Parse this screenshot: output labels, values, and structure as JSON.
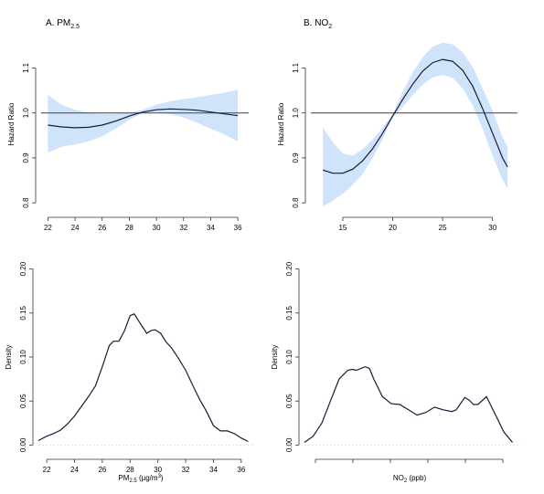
{
  "panels": {
    "a": {
      "title_prefix": "A. PM",
      "title_sub": "2.5"
    },
    "b": {
      "title_prefix": "B. NO",
      "title_sub": "2"
    },
    "c": {
      "xlabel_prefix": "PM",
      "xlabel_sub": "2.5",
      "xlabel_mid": " (µg/m",
      "xlabel_sup": "3",
      "xlabel_end": ")"
    },
    "d": {
      "xlabel": "NO2 (ppb)",
      "xlabel_prefix": "NO",
      "xlabel_sub": "2",
      "xlabel_end": " (ppb)"
    }
  },
  "colors": {
    "line": "#1a1a3a",
    "band": "#cfe3fb",
    "ref": "#555555",
    "axis": "#333333"
  },
  "chart_data": [
    {
      "id": "a",
      "type": "line",
      "title": "A. PM2.5",
      "xlabel": "",
      "ylabel": "Hazard Ratio",
      "xlim": [
        21.5,
        36.8
      ],
      "ylim": [
        0.78,
        1.17
      ],
      "xticks": [
        22,
        24,
        26,
        28,
        30,
        32,
        34,
        36
      ],
      "yticks": [
        0.8,
        0.9,
        1.0,
        1.1
      ],
      "ytick_labels": [
        "0.8",
        "0.9",
        "1.0",
        "1.1"
      ],
      "reference_line": 1.0,
      "x": [
        22,
        23,
        24,
        25,
        26,
        27,
        28,
        29,
        30,
        31,
        32,
        33,
        34,
        35,
        36
      ],
      "series": [
        {
          "values": [
            0.973,
            0.969,
            0.967,
            0.968,
            0.973,
            0.982,
            0.993,
            1.002,
            1.007,
            1.009,
            1.008,
            1.006,
            1.002,
            0.998,
            0.994
          ]
        }
      ],
      "ci_lower": [
        0.912,
        0.925,
        0.93,
        0.937,
        0.948,
        0.965,
        0.985,
        1.0,
        1.002,
        0.998,
        0.99,
        0.978,
        0.965,
        0.952,
        0.937
      ],
      "ci_upper": [
        1.04,
        1.018,
        1.007,
        1.0,
        0.998,
        0.998,
        1.0,
        1.007,
        1.018,
        1.026,
        1.031,
        1.035,
        1.04,
        1.045,
        1.052
      ]
    },
    {
      "id": "b",
      "type": "line",
      "title": "B. NO2",
      "xlabel": "",
      "ylabel": "Hazard Ratio",
      "xlim": [
        11.8,
        32.5
      ],
      "ylim": [
        0.78,
        1.17
      ],
      "xticks": [
        15,
        20,
        25,
        30
      ],
      "yticks": [
        0.8,
        0.9,
        1.0,
        1.1
      ],
      "ytick_labels": [
        "0.8",
        "0.9",
        "1.0",
        "1.1"
      ],
      "reference_line": 1.0,
      "x": [
        13,
        14,
        15,
        16,
        17,
        18,
        19,
        20,
        21,
        22,
        23,
        24,
        25,
        26,
        27,
        28,
        29,
        30,
        31,
        31.5
      ],
      "series": [
        {
          "values": [
            0.873,
            0.866,
            0.866,
            0.875,
            0.894,
            0.921,
            0.955,
            0.993,
            1.03,
            1.064,
            1.093,
            1.112,
            1.119,
            1.115,
            1.095,
            1.06,
            1.01,
            0.955,
            0.9,
            0.88
          ]
        }
      ],
      "ci_lower": [
        0.792,
        0.805,
        0.82,
        0.84,
        0.865,
        0.9,
        0.942,
        0.99,
        1.013,
        1.04,
        1.063,
        1.079,
        1.084,
        1.078,
        1.055,
        1.017,
        0.965,
        0.905,
        0.852,
        0.832
      ],
      "ci_upper": [
        0.968,
        0.935,
        0.91,
        0.905,
        0.92,
        0.941,
        0.968,
        0.997,
        1.047,
        1.09,
        1.124,
        1.147,
        1.156,
        1.153,
        1.135,
        1.103,
        1.055,
        1.005,
        0.946,
        0.925
      ]
    },
    {
      "id": "c",
      "type": "line",
      "title": "",
      "xlabel": "PM2.5 (µg/m3)",
      "ylabel": "Density",
      "xlim": [
        21.4,
        36.8
      ],
      "ylim": [
        -0.01,
        0.21
      ],
      "xticks": [
        22,
        24,
        26,
        28,
        30,
        32,
        34,
        36
      ],
      "yticks": [
        0.0,
        0.05,
        0.1,
        0.15,
        0.2
      ],
      "ytick_labels": [
        "0.00",
        "0.05",
        "0.10",
        "0.15",
        "0.20"
      ],
      "x": [
        21.4,
        22,
        22.5,
        23,
        23.5,
        24,
        24.5,
        25,
        25.5,
        26,
        26.5,
        26.8,
        27.2,
        27.6,
        28,
        28.3,
        28.7,
        29.2,
        29.5,
        29.8,
        30.2,
        30.6,
        31,
        31.5,
        32,
        32.5,
        33,
        33.5,
        34,
        34.5,
        35,
        35.5,
        36,
        36.5
      ],
      "series": [
        {
          "values": [
            0.005,
            0.01,
            0.013,
            0.017,
            0.024,
            0.033,
            0.044,
            0.055,
            0.067,
            0.089,
            0.113,
            0.118,
            0.118,
            0.13,
            0.147,
            0.149,
            0.139,
            0.127,
            0.13,
            0.131,
            0.127,
            0.117,
            0.11,
            0.098,
            0.085,
            0.068,
            0.052,
            0.038,
            0.022,
            0.016,
            0.016,
            0.013,
            0.008,
            0.004
          ]
        }
      ]
    },
    {
      "id": "d",
      "type": "line",
      "title": "",
      "xlabel": "NO2 (ppb)",
      "ylabel": "Density",
      "xlim": [
        10,
        35
      ],
      "ylim": [
        -0.01,
        0.21
      ],
      "xticks": [],
      "yticks": [
        0.0,
        0.05,
        0.1,
        0.15,
        0.2
      ],
      "ytick_labels": [
        "0.00",
        "0.05",
        "0.10",
        "0.15",
        "0.20"
      ],
      "x": [
        10,
        11,
        12,
        13,
        14,
        15,
        15.5,
        16,
        17,
        17.5,
        18,
        19,
        20,
        21,
        22,
        23,
        24,
        25,
        26,
        27,
        27.5,
        28,
        28.5,
        29,
        29.5,
        30,
        31,
        32,
        33,
        34
      ],
      "series": [
        {
          "values": [
            0.003,
            0.01,
            0.025,
            0.05,
            0.075,
            0.085,
            0.086,
            0.085,
            0.089,
            0.087,
            0.075,
            0.055,
            0.047,
            0.046,
            0.04,
            0.034,
            0.037,
            0.043,
            0.04,
            0.038,
            0.04,
            0.047,
            0.054,
            0.051,
            0.046,
            0.046,
            0.055,
            0.035,
            0.015,
            0.003
          ]
        }
      ]
    }
  ]
}
